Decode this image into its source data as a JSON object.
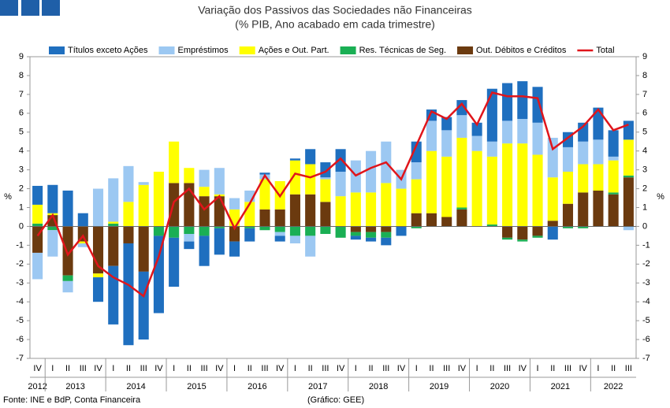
{
  "chart_data": {
    "type": "bar",
    "title": "Variação dos Passivos das Sociedades não Financeiras",
    "subtitle": "(% PIB, Ano acabado em cada trimestre)",
    "y_label": "%",
    "y2_label": "%",
    "source": "Fonte: INE e BdP, Conta Financeira",
    "credit": "(Gráfico: GEE)",
    "categories": [
      "IV",
      "I",
      "II",
      "III",
      "IV",
      "I",
      "II",
      "III",
      "IV",
      "I",
      "II",
      "III",
      "IV",
      "I",
      "II",
      "III",
      "IV",
      "I",
      "II",
      "III",
      "IV",
      "I",
      "II",
      "III",
      "IV",
      "I",
      "II",
      "III",
      "IV",
      "I",
      "II",
      "III",
      "IV",
      "I",
      "II",
      "III",
      "IV",
      "I",
      "II",
      "III"
    ],
    "years": [
      "2012",
      "2013",
      "2014",
      "2015",
      "2016",
      "2017",
      "2018",
      "2019",
      "2020",
      "2021",
      "2022"
    ],
    "ylim": [
      -7,
      9
    ],
    "yticks": [
      -7,
      -6,
      -5,
      -4,
      -3,
      -2,
      -1,
      0,
      1,
      2,
      3,
      4,
      5,
      6,
      7,
      8,
      9
    ],
    "y2lim": [
      -7,
      9
    ],
    "y2ticks": [
      -7,
      -6,
      -5,
      -4,
      -3,
      -2,
      -1,
      0,
      1,
      2,
      3,
      4,
      5,
      6,
      7,
      8,
      9
    ],
    "stacked": true,
    "series": [
      {
        "name": "Títulos exceto Ações",
        "color": "#1f6fbf",
        "values": [
          1.0,
          1.5,
          1.9,
          0.7,
          -1.3,
          -3.1,
          -5.4,
          -3.6,
          -4.1,
          -2.6,
          -0.4,
          -1.6,
          -1.4,
          -0.8,
          -0.7,
          0.1,
          -0.3,
          0.1,
          0.8,
          0.8,
          1.2,
          -0.2,
          -0.2,
          -0.4,
          -0.5,
          1.1,
          0.6,
          0.7,
          0.8,
          0.7,
          2.8,
          2.0,
          2.0,
          1.9,
          -0.7,
          0.8,
          1.0,
          1.7,
          1.4,
          1.0
        ]
      },
      {
        "name": "Empréstimos",
        "color": "#9cc8f2",
        "values": [
          -1.4,
          -1.4,
          -0.6,
          -0.2,
          2.0,
          2.3,
          1.9,
          0.15,
          0,
          0,
          -0.4,
          0.9,
          1.4,
          0.6,
          0.6,
          0.25,
          -0.2,
          -0.4,
          -1.1,
          0.1,
          1.3,
          1.7,
          2.2,
          2.2,
          1.0,
          0.9,
          1.6,
          1.4,
          1.2,
          0.8,
          0.8,
          1.2,
          1.3,
          1.7,
          2.1,
          1.3,
          1.2,
          1.3,
          0.2,
          -0.2
        ]
      },
      {
        "name": "Ações e Out. Part.",
        "color": "#ffff00",
        "values": [
          1.0,
          0.1,
          0,
          -0.1,
          -0.2,
          0.1,
          1.3,
          2.2,
          2.9,
          2.2,
          0.8,
          0.5,
          0.1,
          0.9,
          1.3,
          1.6,
          1.5,
          1.8,
          1.6,
          1.2,
          1.6,
          1.8,
          1.8,
          2.3,
          2.0,
          1.8,
          3.3,
          3.2,
          3.7,
          4.0,
          3.6,
          4.4,
          4.4,
          3.8,
          2.3,
          1.7,
          1.5,
          1.4,
          1.7,
          1.9
        ]
      },
      {
        "name": "Res. Técnicas de Seg.",
        "color": "#1aaf54",
        "values": [
          0.15,
          -0.2,
          -0.3,
          0,
          0,
          0.15,
          0,
          0,
          -0.5,
          -0.6,
          -0.4,
          -0.5,
          -0.1,
          0,
          -0.1,
          -0.2,
          -0.3,
          -0.5,
          -0.5,
          -0.4,
          -0.6,
          -0.2,
          -0.3,
          -0.3,
          0,
          -0.1,
          0,
          0,
          0.1,
          0,
          0.1,
          -0.1,
          -0.1,
          -0.1,
          0,
          -0.1,
          -0.1,
          0,
          0.1,
          0.1
        ]
      },
      {
        "name": "Out. Débitos e Créditos",
        "color": "#6b3a0f",
        "values": [
          -1.4,
          0.6,
          -2.6,
          -0.8,
          -2.5,
          -2.1,
          -0.9,
          -2.4,
          0,
          2.3,
          2.3,
          1.6,
          1.6,
          -0.8,
          0,
          0.9,
          0.9,
          1.7,
          1.7,
          1.3,
          0,
          -0.3,
          -0.3,
          -0.3,
          0,
          0.7,
          0.7,
          0.5,
          0.9,
          0,
          0,
          -0.6,
          -0.7,
          -0.5,
          0.3,
          1.2,
          1.8,
          1.9,
          1.7,
          2.6
        ]
      },
      {
        "name": "Total",
        "color": "#e0151b",
        "type": "line",
        "values": [
          -0.5,
          0.6,
          -1.5,
          -0.5,
          -2.1,
          -2.7,
          -3.1,
          -3.7,
          -1.6,
          1.3,
          2.0,
          0.9,
          1.6,
          -0.1,
          1.2,
          2.7,
          1.6,
          2.8,
          2.6,
          2.9,
          3.6,
          2.7,
          3.1,
          3.4,
          2.5,
          4.3,
          6.1,
          5.7,
          6.5,
          5.4,
          7.1,
          6.9,
          6.9,
          6.8,
          4.1,
          4.7,
          5.3,
          6.2,
          5.1,
          5.4
        ]
      }
    ]
  }
}
